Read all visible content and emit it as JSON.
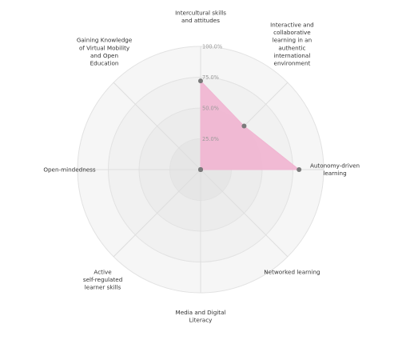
{
  "chart_data": {
    "type": "radar",
    "axes": [
      "Intercultural skills\nand attitudes",
      "Interactive and\ncollaborative\nlearning in an\nauthentic\ninternational\nenvironment",
      "Autonomy-driven\nlearning",
      "Networked learning",
      "Media and Digital\nLiteracy",
      "Active\nself-regulated\nlearner skills",
      "Open-mindedness",
      "Gaining Knowledge\nof Virtual Mobility\nand Open\nEducation"
    ],
    "rmax": 100,
    "ticks": [
      {
        "value": 25,
        "label": "25.0%"
      },
      {
        "value": 50,
        "label": "50.0%"
      },
      {
        "value": 75,
        "label": "75.0%"
      },
      {
        "value": 100,
        "label": "100.0%"
      }
    ],
    "series": [
      {
        "values": [
          72,
          50,
          80,
          0,
          0,
          0,
          0,
          0
        ],
        "fill": "#f0b6d2",
        "stroke": "#f0b6d2",
        "marker": "#7a7a7a"
      }
    ],
    "ring_colors": [
      "#e6e6e6",
      "#ececec",
      "#f1f1f1",
      "#f6f6f6"
    ],
    "grid": true
  }
}
